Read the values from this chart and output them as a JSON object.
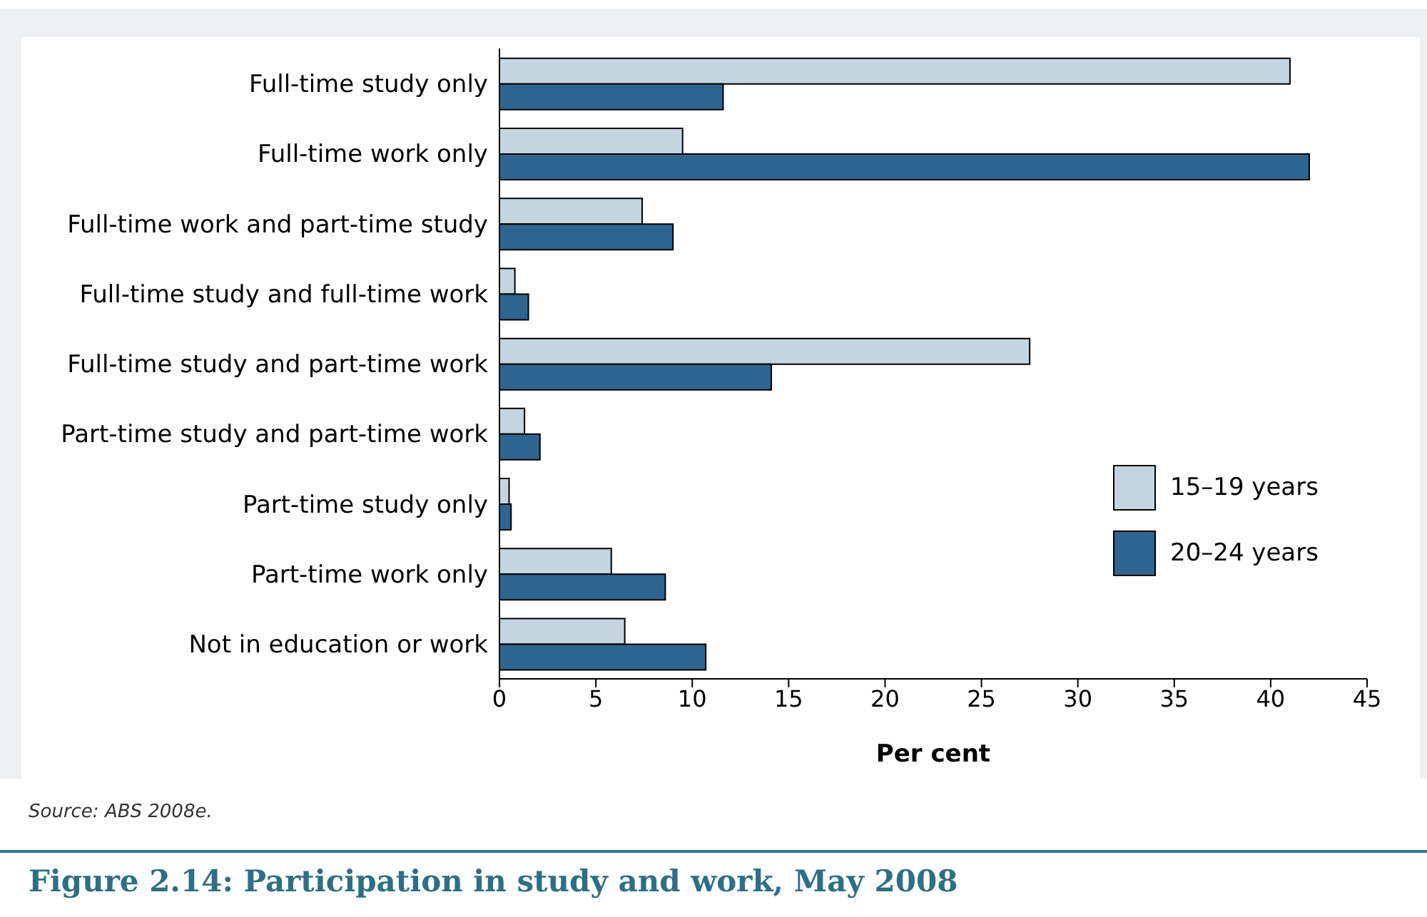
{
  "chart_data": {
    "type": "bar",
    "orientation": "horizontal",
    "title": "Figure 2.14: Participation in study and work, May 2008",
    "xlabel": "Per cent",
    "categories": [
      "Full-time study only",
      "Full-time work only",
      "Full-time work and part-time study",
      "Full-time study and full-time work",
      "Full-time study and part-time work",
      "Part-time study and part-time work",
      "Part-time study only",
      "Part-time work only",
      "Not in education or work"
    ],
    "series": [
      {
        "name": "15–19 years",
        "color": "#c5d5e0",
        "values": [
          41.0,
          9.5,
          7.4,
          0.8,
          27.5,
          1.3,
          0.5,
          5.8,
          6.5
        ]
      },
      {
        "name": "20–24 years",
        "color": "#2e6590",
        "values": [
          11.6,
          42.0,
          9.0,
          1.5,
          14.1,
          2.1,
          0.6,
          8.6,
          10.7
        ]
      }
    ],
    "xlim": [
      0,
      45
    ],
    "xticks": [
      0,
      5,
      10,
      15,
      20,
      25,
      30,
      35,
      40,
      45
    ],
    "grid": false,
    "legend": "right",
    "annotations": [
      "Source: ABS 2008e."
    ]
  }
}
